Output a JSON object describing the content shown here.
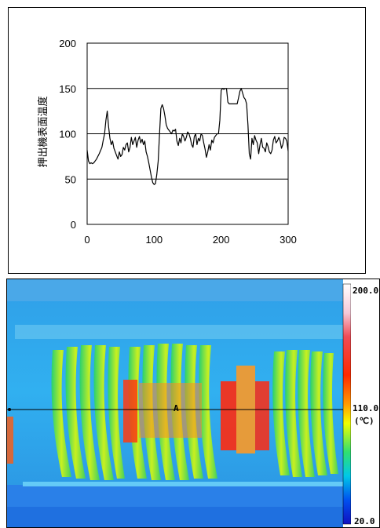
{
  "chart_data": {
    "type": "line",
    "ylabel": "押出機表面温度",
    "xlabel": "",
    "xlim": [
      0,
      300
    ],
    "ylim": [
      0,
      200
    ],
    "x_ticks": [
      "0",
      "100",
      "200",
      "300"
    ],
    "y_ticks": [
      "0",
      "50",
      "100",
      "150",
      "200"
    ],
    "grid": "horizontal",
    "series": [
      {
        "color": "#000000",
        "x": [
          0,
          2,
          4,
          6,
          8,
          10,
          14,
          18,
          22,
          24,
          26,
          28,
          30,
          32,
          34,
          36,
          38,
          40,
          42,
          44,
          46,
          48,
          50,
          52,
          54,
          56,
          58,
          60,
          62,
          64,
          66,
          68,
          70,
          72,
          74,
          76,
          78,
          80,
          82,
          84,
          86,
          88,
          90,
          92,
          94,
          96,
          98,
          100,
          102,
          104,
          106,
          108,
          110,
          112,
          114,
          116,
          118,
          120,
          122,
          124,
          126,
          128,
          130,
          132,
          134,
          136,
          138,
          140,
          142,
          144,
          146,
          148,
          150,
          152,
          154,
          156,
          158,
          160,
          162,
          164,
          166,
          168,
          170,
          172,
          174,
          176,
          178,
          180,
          182,
          184,
          186,
          188,
          190,
          192,
          194,
          196,
          198,
          200,
          202,
          204,
          206,
          208,
          210,
          212,
          214,
          216,
          218,
          220,
          222,
          224,
          226,
          228,
          230,
          232,
          234,
          236,
          238,
          240,
          242,
          244,
          246,
          248,
          250,
          252,
          254,
          256,
          258,
          260,
          262,
          264,
          266,
          268,
          270,
          272,
          274,
          276,
          278,
          280,
          282,
          284,
          286,
          288,
          290,
          292,
          294,
          296,
          298,
          300
        ],
        "values": [
          82,
          70,
          67,
          68,
          67,
          68,
          72,
          78,
          85,
          93,
          100,
          115,
          125,
          108,
          95,
          88,
          92,
          84,
          80,
          76,
          72,
          80,
          75,
          77,
          85,
          82,
          88,
          90,
          80,
          85,
          96,
          88,
          92,
          96,
          85,
          93,
          97,
          90,
          94,
          88,
          92,
          80,
          75,
          68,
          60,
          52,
          46,
          44,
          45,
          55,
          70,
          100,
          128,
          132,
          128,
          120,
          110,
          106,
          104,
          102,
          100,
          104,
          103,
          105,
          92,
          87,
          95,
          90,
          100,
          97,
          92,
          96,
          102,
          100,
          95,
          88,
          85,
          97,
          100,
          88,
          95,
          92,
          100,
          98,
          90,
          83,
          74,
          80,
          88,
          82,
          93,
          90,
          96,
          98,
          100,
          100,
          115,
          148,
          150,
          149,
          150,
          150,
          135,
          133,
          133,
          133,
          133,
          133,
          133,
          133,
          140,
          147,
          150,
          145,
          140,
          138,
          133,
          110,
          78,
          72,
          95,
          88,
          98,
          93,
          90,
          78,
          88,
          95,
          85,
          84,
          80,
          90,
          86,
          80,
          78,
          82,
          93,
          97,
          90,
          92,
          96,
          92,
          84,
          88,
          96,
          95,
          92,
          81
        ]
      }
    ]
  },
  "thermal_image": {
    "scale_max": "200.0",
    "scale_mid": "110.0",
    "scale_unit": "(℃)",
    "scale_min": "20.0",
    "cursor_label": "A"
  }
}
